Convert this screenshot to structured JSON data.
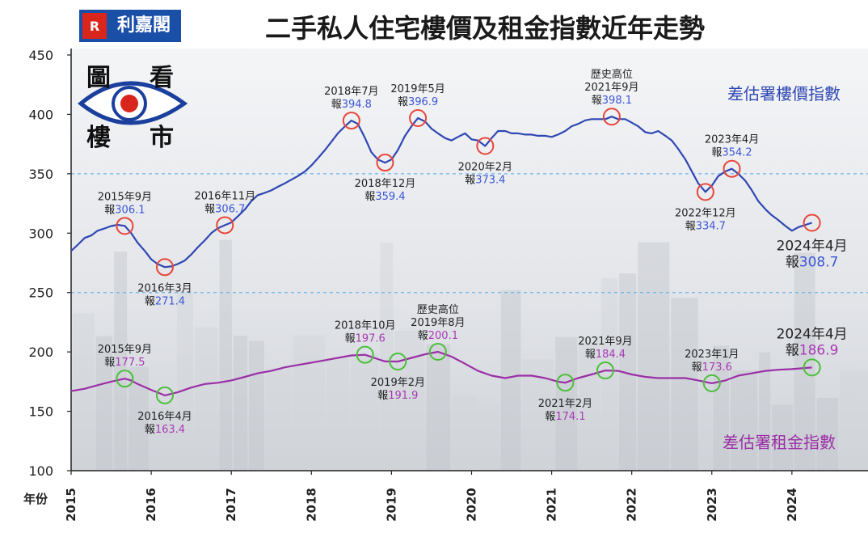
{
  "header": {
    "title": "二手私人住宅樓價及租金指數近年走勢",
    "logo_text": "利嘉閣",
    "badge_chars": [
      "圖",
      "看",
      "樓",
      "市"
    ]
  },
  "colors": {
    "price": "#2f47b3",
    "rent": "#9b2fa6",
    "price_marker": "#e8463a",
    "rent_marker": "#4bbf3a",
    "price_value_text": "#3b56d6",
    "rent_value_text": "#a83ab5",
    "gridline": "#6bb5e8",
    "background_overlay": "#e9ebee"
  },
  "chart_data": {
    "type": "line",
    "title": "二手私人住宅樓價及租金指數近年走勢",
    "xlabel": "年份",
    "ylabel": "",
    "ylim": [
      100,
      450
    ],
    "yticks": [
      "100",
      "150",
      "200",
      "250",
      "300",
      "350",
      "400",
      "450"
    ],
    "xticks": [
      "2015",
      "2016",
      "2017",
      "2018",
      "2019",
      "2020",
      "2021",
      "2022",
      "2023",
      "2024"
    ],
    "xlim": [
      2015.0,
      2024.95
    ],
    "dashed_gridlines": [
      350,
      250
    ],
    "series": [
      {
        "name": "差估署樓價指數",
        "points": [
          [
            2015.0,
            285
          ],
          [
            2015.08,
            290
          ],
          [
            2015.17,
            296
          ],
          [
            2015.25,
            298
          ],
          [
            2015.33,
            302
          ],
          [
            2015.42,
            304
          ],
          [
            2015.5,
            306
          ],
          [
            2015.58,
            307
          ],
          [
            2015.67,
            306.1
          ],
          [
            2015.75,
            300
          ],
          [
            2015.83,
            292
          ],
          [
            2015.92,
            285
          ],
          [
            2016.0,
            278
          ],
          [
            2016.08,
            274
          ],
          [
            2016.17,
            271.4
          ],
          [
            2016.25,
            272
          ],
          [
            2016.33,
            274
          ],
          [
            2016.42,
            277
          ],
          [
            2016.5,
            282
          ],
          [
            2016.58,
            288
          ],
          [
            2016.67,
            294
          ],
          [
            2016.75,
            300
          ],
          [
            2016.83,
            304
          ],
          [
            2016.92,
            306.7
          ],
          [
            2017.0,
            309
          ],
          [
            2017.08,
            314
          ],
          [
            2017.17,
            320
          ],
          [
            2017.25,
            327
          ],
          [
            2017.33,
            332
          ],
          [
            2017.42,
            334
          ],
          [
            2017.5,
            336
          ],
          [
            2017.58,
            339
          ],
          [
            2017.67,
            342
          ],
          [
            2017.75,
            345
          ],
          [
            2017.83,
            348
          ],
          [
            2017.92,
            352
          ],
          [
            2018.0,
            357
          ],
          [
            2018.08,
            363
          ],
          [
            2018.17,
            370
          ],
          [
            2018.25,
            377
          ],
          [
            2018.33,
            384
          ],
          [
            2018.42,
            390
          ],
          [
            2018.5,
            394.8
          ],
          [
            2018.58,
            392
          ],
          [
            2018.67,
            380
          ],
          [
            2018.75,
            368
          ],
          [
            2018.83,
            362
          ],
          [
            2018.92,
            359.4
          ],
          [
            2019.0,
            362
          ],
          [
            2019.08,
            370
          ],
          [
            2019.17,
            382
          ],
          [
            2019.25,
            390
          ],
          [
            2019.33,
            396.9
          ],
          [
            2019.42,
            394
          ],
          [
            2019.5,
            388
          ],
          [
            2019.58,
            384
          ],
          [
            2019.67,
            380
          ],
          [
            2019.75,
            378
          ],
          [
            2019.83,
            381
          ],
          [
            2019.92,
            384
          ],
          [
            2020.0,
            379
          ],
          [
            2020.08,
            378
          ],
          [
            2020.17,
            373.4
          ],
          [
            2020.25,
            380
          ],
          [
            2020.33,
            386
          ],
          [
            2020.42,
            386
          ],
          [
            2020.5,
            384
          ],
          [
            2020.58,
            384
          ],
          [
            2020.67,
            383
          ],
          [
            2020.75,
            383
          ],
          [
            2020.83,
            382
          ],
          [
            2020.92,
            382
          ],
          [
            2021.0,
            381
          ],
          [
            2021.08,
            383
          ],
          [
            2021.17,
            386
          ],
          [
            2021.25,
            390
          ],
          [
            2021.33,
            392
          ],
          [
            2021.42,
            395
          ],
          [
            2021.5,
            396
          ],
          [
            2021.58,
            396
          ],
          [
            2021.67,
            396
          ],
          [
            2021.75,
            398.1
          ],
          [
            2021.83,
            396
          ],
          [
            2021.92,
            396
          ],
          [
            2022.0,
            393
          ],
          [
            2022.08,
            390
          ],
          [
            2022.17,
            385
          ],
          [
            2022.25,
            384
          ],
          [
            2022.33,
            386
          ],
          [
            2022.42,
            382
          ],
          [
            2022.5,
            378
          ],
          [
            2022.58,
            371
          ],
          [
            2022.67,
            362
          ],
          [
            2022.75,
            352
          ],
          [
            2022.83,
            342
          ],
          [
            2022.92,
            334.7
          ],
          [
            2023.0,
            340
          ],
          [
            2023.08,
            348
          ],
          [
            2023.17,
            352
          ],
          [
            2023.25,
            354.2
          ],
          [
            2023.33,
            350
          ],
          [
            2023.42,
            344
          ],
          [
            2023.5,
            336
          ],
          [
            2023.58,
            327
          ],
          [
            2023.67,
            320
          ],
          [
            2023.75,
            315
          ],
          [
            2023.83,
            311
          ],
          [
            2023.92,
            306
          ],
          [
            2024.0,
            302
          ],
          [
            2024.08,
            305
          ],
          [
            2024.17,
            307
          ],
          [
            2024.25,
            308.7
          ]
        ],
        "annotations": [
          {
            "x": 2015.67,
            "y": 306.1,
            "date": "2015年9月",
            "prefix": "報",
            "value": "306.1",
            "pos": "above"
          },
          {
            "x": 2016.17,
            "y": 271.4,
            "date": "2016年3月",
            "prefix": "報",
            "value": "271.4",
            "pos": "below"
          },
          {
            "x": 2016.92,
            "y": 306.7,
            "date": "2016年11月",
            "prefix": "報",
            "value": "306.7",
            "pos": "above"
          },
          {
            "x": 2018.5,
            "y": 394.8,
            "date": "2018年7月",
            "prefix": "報",
            "value": "394.8",
            "pos": "above"
          },
          {
            "x": 2018.92,
            "y": 359.4,
            "date": "2018年12月",
            "prefix": "報",
            "value": "359.4",
            "pos": "below"
          },
          {
            "x": 2019.33,
            "y": 396.9,
            "date": "2019年5月",
            "prefix": "報",
            "value": "396.9",
            "pos": "above"
          },
          {
            "x": 2020.17,
            "y": 373.4,
            "date": "2020年2月",
            "prefix": "報",
            "value": "373.4",
            "pos": "below"
          },
          {
            "x": 2021.75,
            "y": 398.1,
            "top": "歷史高位",
            "date": "2021年9月",
            "prefix": "報",
            "value": "398.1",
            "pos": "above"
          },
          {
            "x": 2022.92,
            "y": 334.7,
            "date": "2022年12月",
            "prefix": "報",
            "value": "334.7",
            "pos": "below"
          },
          {
            "x": 2023.25,
            "y": 354.2,
            "date": "2023年4月",
            "prefix": "報",
            "value": "354.2",
            "pos": "above"
          },
          {
            "x": 2024.25,
            "y": 308.7,
            "date": "2024年4月",
            "prefix": "報",
            "value": "308.7",
            "pos": "below-big"
          }
        ]
      },
      {
        "name": "差估署租金指數",
        "points": [
          [
            2015.0,
            167
          ],
          [
            2015.17,
            169
          ],
          [
            2015.33,
            172
          ],
          [
            2015.5,
            175
          ],
          [
            2015.67,
            177.5
          ],
          [
            2015.75,
            176
          ],
          [
            2015.83,
            173
          ],
          [
            2016.0,
            168
          ],
          [
            2016.17,
            163.4
          ],
          [
            2016.33,
            166
          ],
          [
            2016.5,
            170
          ],
          [
            2016.67,
            173
          ],
          [
            2016.83,
            174
          ],
          [
            2017.0,
            176
          ],
          [
            2017.17,
            179
          ],
          [
            2017.33,
            182
          ],
          [
            2017.5,
            184
          ],
          [
            2017.67,
            187
          ],
          [
            2017.83,
            189
          ],
          [
            2018.0,
            191
          ],
          [
            2018.17,
            193
          ],
          [
            2018.33,
            195
          ],
          [
            2018.5,
            197
          ],
          [
            2018.67,
            197.6
          ],
          [
            2018.83,
            194
          ],
          [
            2018.92,
            192
          ],
          [
            2019.08,
            191.9
          ],
          [
            2019.25,
            195
          ],
          [
            2019.42,
            198
          ],
          [
            2019.58,
            200.1
          ],
          [
            2019.75,
            196
          ],
          [
            2019.92,
            190
          ],
          [
            2020.08,
            184
          ],
          [
            2020.25,
            180
          ],
          [
            2020.42,
            178
          ],
          [
            2020.58,
            180
          ],
          [
            2020.75,
            180
          ],
          [
            2020.92,
            178
          ],
          [
            2021.08,
            175
          ],
          [
            2021.17,
            174.1
          ],
          [
            2021.33,
            178
          ],
          [
            2021.5,
            181
          ],
          [
            2021.67,
            184.4
          ],
          [
            2021.83,
            184
          ],
          [
            2022.0,
            181
          ],
          [
            2022.17,
            179
          ],
          [
            2022.33,
            178
          ],
          [
            2022.5,
            178
          ],
          [
            2022.67,
            178
          ],
          [
            2022.83,
            176
          ],
          [
            2023.0,
            173.6
          ],
          [
            2023.17,
            176
          ],
          [
            2023.33,
            180
          ],
          [
            2023.5,
            182
          ],
          [
            2023.67,
            184
          ],
          [
            2023.83,
            185
          ],
          [
            2024.0,
            185.5
          ],
          [
            2024.17,
            186.5
          ],
          [
            2024.25,
            186.9
          ]
        ],
        "annotations": [
          {
            "x": 2015.67,
            "y": 177.5,
            "date": "2015年9月",
            "prefix": "報",
            "value": "177.5",
            "pos": "above"
          },
          {
            "x": 2016.17,
            "y": 163.4,
            "date": "2016年4月",
            "prefix": "報",
            "value": "163.4",
            "pos": "below"
          },
          {
            "x": 2018.67,
            "y": 197.6,
            "date": "2018年10月",
            "prefix": "報",
            "value": "197.6",
            "pos": "above"
          },
          {
            "x": 2019.08,
            "y": 191.9,
            "date": "2019年2月",
            "prefix": "報",
            "value": "191.9",
            "pos": "below"
          },
          {
            "x": 2019.58,
            "y": 200.1,
            "top": "歷史高位",
            "date": "2019年8月",
            "prefix": "報",
            "value": "200.1",
            "pos": "above"
          },
          {
            "x": 2021.17,
            "y": 174.1,
            "date": "2021年2月",
            "prefix": "報",
            "value": "174.1",
            "pos": "below"
          },
          {
            "x": 2021.67,
            "y": 184.4,
            "date": "2021年9月",
            "prefix": "報",
            "value": "184.4",
            "pos": "above"
          },
          {
            "x": 2023.0,
            "y": 173.6,
            "date": "2023年1月",
            "prefix": "報",
            "value": "173.6",
            "pos": "above"
          },
          {
            "x": 2024.25,
            "y": 186.9,
            "date": "2024年4月",
            "prefix": "報",
            "value": "186.9",
            "pos": "above-big"
          }
        ]
      }
    ]
  }
}
